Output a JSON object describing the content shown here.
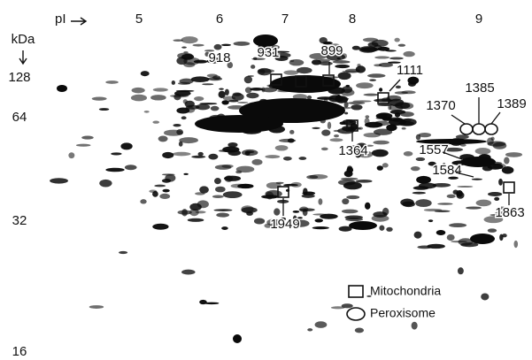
{
  "figure": {
    "x_axis": {
      "label": "pI",
      "ticks": [
        "5",
        "6",
        "7",
        "8",
        "9"
      ]
    },
    "y_axis": {
      "unit": "kDa",
      "ticks": [
        "128",
        "64",
        "32",
        "16"
      ]
    },
    "spots": [
      "918",
      "931",
      "899",
      "1111",
      "1385",
      "1370",
      "1389",
      "1364",
      "1557",
      "1584",
      "1863",
      "1949"
    ],
    "legend": [
      "Mitochondria",
      "Peroxisome"
    ]
  }
}
